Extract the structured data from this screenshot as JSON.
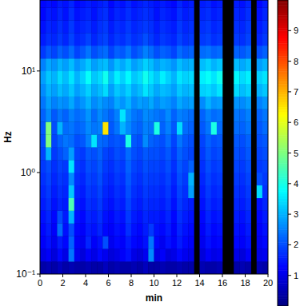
{
  "chart_data": {
    "type": "heatmap",
    "x_label": "min",
    "y_label": "Hz",
    "log": "y",
    "xlim": [
      0,
      20
    ],
    "xticks": [
      0,
      2,
      4,
      6,
      8,
      10,
      12,
      14,
      16,
      18,
      20
    ],
    "ylim": [
      0.1,
      50
    ],
    "yticks": [
      {
        "value": 0.1,
        "label": "10⁻¹"
      },
      {
        "value": 1,
        "label": "10⁰"
      },
      {
        "value": 10,
        "label": "10¹"
      }
    ],
    "x": [
      0,
      0.5,
      1,
      1.5,
      2,
      2.5,
      3,
      3.5,
      4,
      4.5,
      5,
      5.5,
      6,
      6.5,
      7,
      7.5,
      8,
      8.5,
      9,
      9.5,
      10,
      10.5,
      11,
      11.5,
      12,
      12.5,
      13,
      13.5,
      14,
      14.5,
      15,
      15.5,
      16,
      16.5,
      17,
      17.5,
      18,
      18.5,
      19,
      19.5,
      20
    ],
    "y": [
      0.1,
      0.133,
      0.178,
      0.237,
      0.316,
      0.422,
      0.562,
      0.75,
      1,
      1.33,
      1.78,
      2.37,
      3.16,
      4.22,
      5.62,
      7.5,
      10,
      13.3,
      17.8,
      23.7,
      31.6,
      42.2,
      56.2
    ],
    "values": [
      [
        0.4,
        0.5,
        0.4,
        0.6,
        0.4,
        0.5,
        0.4,
        0.4,
        0.5,
        0.4,
        0.4,
        0.6,
        0.4,
        0.5,
        0.4,
        0.4,
        0.5,
        0.4,
        0.6,
        0.4,
        0.4,
        0.5,
        0.4,
        0.4,
        0.5,
        0.4,
        0.4,
        null,
        0.5,
        0.4,
        0.4,
        0.5,
        null,
        null,
        0.4,
        0.5,
        0.4,
        null,
        0.5,
        0.4
      ],
      [
        1.0,
        1.2,
        0.9,
        1.3,
        1.0,
        2.4,
        1.1,
        0.9,
        1.2,
        1.0,
        1.3,
        1.1,
        0.9,
        1.0,
        1.2,
        1.4,
        1.0,
        0.9,
        1.1,
        2.6,
        1.0,
        1.2,
        0.9,
        1.0,
        1.3,
        1.1,
        1.0,
        null,
        0.9,
        1.2,
        1.0,
        1.1,
        null,
        null,
        1.0,
        0.9,
        1.2,
        null,
        1.0,
        1.1
      ],
      [
        1.2,
        1.4,
        1.1,
        1.5,
        1.3,
        2.2,
        1.2,
        1.1,
        1.6,
        1.2,
        1.4,
        2.0,
        1.1,
        1.3,
        1.2,
        1.5,
        1.3,
        1.2,
        1.4,
        2.4,
        1.3,
        1.1,
        1.4,
        1.2,
        1.5,
        1.3,
        1.2,
        null,
        1.1,
        1.4,
        1.2,
        1.3,
        null,
        null,
        1.3,
        1.2,
        1.4,
        null,
        1.1,
        1.3
      ],
      [
        1.3,
        1.5,
        1.2,
        2.3,
        1.4,
        2.0,
        1.3,
        1.2,
        1.5,
        1.4,
        1.6,
        1.3,
        1.2,
        1.4,
        1.3,
        1.7,
        1.4,
        1.3,
        1.5,
        1.8,
        1.4,
        1.3,
        1.5,
        1.2,
        1.6,
        1.4,
        1.3,
        null,
        1.2,
        1.5,
        1.3,
        1.4,
        null,
        null,
        1.4,
        1.3,
        1.5,
        null,
        1.2,
        1.4
      ],
      [
        1.4,
        1.6,
        1.3,
        2.0,
        1.5,
        3.0,
        1.4,
        1.3,
        1.6,
        1.5,
        1.7,
        1.4,
        1.3,
        1.5,
        1.4,
        1.8,
        1.5,
        1.4,
        1.6,
        1.5,
        1.5,
        1.4,
        1.6,
        1.3,
        1.7,
        1.5,
        1.4,
        null,
        1.3,
        1.6,
        1.4,
        1.5,
        null,
        null,
        1.5,
        1.4,
        1.6,
        null,
        1.3,
        1.5
      ],
      [
        1.5,
        1.7,
        1.4,
        1.6,
        1.5,
        4.5,
        1.5,
        1.4,
        1.7,
        1.6,
        1.8,
        1.5,
        1.4,
        1.6,
        1.5,
        1.9,
        1.6,
        1.5,
        1.7,
        1.6,
        1.6,
        1.5,
        1.7,
        1.4,
        1.8,
        1.6,
        1.5,
        null,
        1.4,
        1.7,
        1.5,
        1.6,
        null,
        null,
        1.6,
        1.5,
        1.7,
        null,
        1.4,
        1.6
      ],
      [
        1.6,
        1.8,
        1.5,
        1.7,
        1.6,
        3.2,
        1.6,
        1.5,
        1.8,
        1.7,
        1.9,
        1.6,
        1.5,
        1.7,
        1.6,
        2.0,
        1.7,
        1.6,
        1.8,
        1.7,
        1.7,
        1.6,
        1.8,
        1.5,
        1.9,
        1.7,
        2.8,
        null,
        1.5,
        1.8,
        1.6,
        1.7,
        null,
        null,
        1.7,
        1.6,
        1.8,
        null,
        3.4,
        1.7
      ],
      [
        1.7,
        1.9,
        1.6,
        1.8,
        1.7,
        2.6,
        1.7,
        1.6,
        1.9,
        1.8,
        2.0,
        1.7,
        1.6,
        1.8,
        1.7,
        2.1,
        1.8,
        1.7,
        1.9,
        1.8,
        1.8,
        1.7,
        1.9,
        1.6,
        2.0,
        1.8,
        3.0,
        null,
        1.6,
        1.9,
        1.7,
        1.8,
        null,
        null,
        1.8,
        1.7,
        1.9,
        null,
        2.0,
        1.8
      ],
      [
        1.8,
        2.0,
        1.7,
        1.9,
        1.8,
        3.5,
        1.8,
        1.7,
        2.0,
        1.9,
        2.1,
        1.8,
        1.7,
        1.9,
        1.8,
        2.2,
        1.9,
        1.8,
        2.0,
        1.9,
        1.9,
        1.8,
        2.0,
        1.7,
        2.1,
        1.9,
        2.2,
        null,
        1.7,
        2.0,
        1.8,
        1.9,
        null,
        null,
        1.9,
        1.8,
        2.0,
        null,
        1.8,
        1.9
      ],
      [
        1.9,
        3.0,
        1.8,
        2.0,
        2.2,
        2.8,
        1.9,
        1.8,
        2.1,
        2.0,
        2.2,
        1.9,
        1.8,
        2.0,
        1.9,
        2.3,
        2.0,
        1.9,
        2.1,
        2.0,
        2.0,
        1.9,
        2.1,
        1.8,
        2.2,
        2.0,
        1.9,
        null,
        1.8,
        2.1,
        1.9,
        2.0,
        null,
        null,
        2.0,
        1.9,
        2.1,
        null,
        1.9,
        2.0
      ],
      [
        2.0,
        5.0,
        1.9,
        2.2,
        2.4,
        2.3,
        2.0,
        2.1,
        2.5,
        3.5,
        2.3,
        2.2,
        2.0,
        2.1,
        2.0,
        4.0,
        2.1,
        2.0,
        2.6,
        2.2,
        2.1,
        2.0,
        2.3,
        1.9,
        2.4,
        2.1,
        2.0,
        null,
        1.9,
        2.2,
        2.0,
        2.1,
        null,
        null,
        2.1,
        2.0,
        2.2,
        null,
        2.0,
        2.1
      ],
      [
        2.1,
        5.0,
        2.0,
        3.0,
        2.3,
        2.4,
        2.2,
        2.3,
        2.6,
        2.4,
        2.5,
        6.5,
        2.1,
        2.4,
        3.0,
        2.6,
        2.3,
        2.2,
        2.5,
        2.4,
        4.0,
        2.2,
        2.5,
        2.1,
        3.4,
        2.3,
        2.2,
        null,
        2.1,
        2.4,
        4.0,
        2.3,
        null,
        null,
        2.3,
        2.2,
        2.4,
        null,
        2.1,
        2.3
      ],
      [
        2.2,
        2.6,
        2.1,
        2.4,
        2.2,
        2.5,
        2.3,
        2.4,
        2.7,
        2.3,
        2.6,
        2.4,
        2.2,
        2.5,
        3.5,
        2.7,
        2.4,
        2.3,
        2.6,
        2.5,
        2.4,
        2.3,
        2.6,
        2.2,
        2.5,
        2.4,
        2.3,
        null,
        2.2,
        2.5,
        2.3,
        2.4,
        null,
        null,
        2.4,
        2.3,
        2.5,
        null,
        2.2,
        2.4
      ],
      [
        2.4,
        2.8,
        2.5,
        2.7,
        2.6,
        2.9,
        2.5,
        2.7,
        3.0,
        2.6,
        2.8,
        2.6,
        2.5,
        2.9,
        2.7,
        3.0,
        2.6,
        2.8,
        2.7,
        2.9,
        2.6,
        2.8,
        2.7,
        2.5,
        2.9,
        2.7,
        2.8,
        null,
        2.6,
        3.0,
        2.7,
        2.8,
        null,
        null,
        2.7,
        2.6,
        2.8,
        null,
        2.5,
        2.7
      ],
      [
        2.6,
        3.0,
        2.8,
        3.1,
        2.9,
        3.2,
        2.8,
        3.0,
        3.3,
        2.9,
        3.1,
        3.4,
        2.8,
        3.2,
        3.0,
        3.3,
        2.9,
        3.1,
        3.5,
        3.2,
        2.9,
        3.1,
        3.0,
        2.8,
        3.2,
        3.0,
        3.1,
        null,
        3.3,
        3.4,
        3.2,
        3.5,
        null,
        null,
        3.4,
        3.1,
        3.3,
        null,
        3.0,
        3.2
      ],
      [
        2.8,
        3.2,
        3.0,
        3.4,
        3.1,
        3.5,
        3.0,
        3.3,
        3.8,
        3.2,
        3.4,
        3.9,
        3.1,
        3.6,
        3.3,
        3.7,
        3.2,
        3.4,
        3.9,
        3.5,
        3.2,
        3.6,
        3.3,
        3.0,
        3.5,
        3.3,
        3.4,
        null,
        3.6,
        3.8,
        3.5,
        3.9,
        null,
        null,
        3.7,
        3.4,
        3.6,
        null,
        3.3,
        3.5
      ],
      [
        2.5,
        2.9,
        2.7,
        3.0,
        2.8,
        3.1,
        2.7,
        2.9,
        3.2,
        2.8,
        3.0,
        3.1,
        2.7,
        3.1,
        2.9,
        3.2,
        2.8,
        3.0,
        3.3,
        3.1,
        2.8,
        3.0,
        2.9,
        2.7,
        3.1,
        2.9,
        3.0,
        null,
        3.1,
        3.3,
        3.0,
        3.2,
        null,
        null,
        3.1,
        2.9,
        3.1,
        null,
        2.8,
        3.0
      ],
      [
        1.8,
        2.1,
        1.9,
        2.2,
        2.0,
        2.3,
        1.9,
        2.1,
        2.4,
        2.0,
        2.2,
        2.3,
        1.9,
        2.2,
        2.1,
        2.4,
        2.0,
        2.2,
        2.5,
        2.3,
        2.0,
        2.2,
        2.1,
        1.9,
        2.3,
        2.1,
        2.2,
        null,
        2.3,
        2.4,
        2.2,
        2.3,
        null,
        null,
        2.2,
        2.1,
        2.3,
        null,
        2.0,
        2.2
      ],
      [
        1.5,
        1.7,
        1.6,
        1.8,
        1.6,
        1.9,
        1.6,
        1.7,
        1.9,
        1.6,
        1.8,
        1.9,
        1.6,
        1.8,
        1.7,
        1.9,
        1.7,
        1.8,
        2.0,
        1.8,
        1.6,
        1.8,
        1.7,
        1.6,
        1.9,
        1.7,
        1.8,
        null,
        1.8,
        1.9,
        1.7,
        1.8,
        null,
        null,
        1.8,
        1.7,
        1.9,
        null,
        1.6,
        1.8
      ],
      [
        1.4,
        1.6,
        1.5,
        1.7,
        1.5,
        1.8,
        1.5,
        1.6,
        1.7,
        1.5,
        1.7,
        1.8,
        1.5,
        1.7,
        1.6,
        1.8,
        1.6,
        1.7,
        1.8,
        1.7,
        1.5,
        1.7,
        1.6,
        1.5,
        1.8,
        1.6,
        1.7,
        null,
        1.7,
        1.8,
        1.6,
        1.7,
        null,
        null,
        1.7,
        1.6,
        1.8,
        null,
        1.5,
        1.7
      ],
      [
        1.3,
        1.5,
        1.4,
        1.6,
        1.4,
        1.7,
        1.4,
        1.5,
        1.6,
        1.4,
        1.6,
        1.7,
        1.4,
        1.6,
        1.5,
        1.7,
        1.5,
        1.6,
        1.7,
        1.6,
        1.4,
        1.6,
        1.5,
        1.4,
        1.7,
        1.5,
        1.6,
        null,
        1.6,
        1.7,
        1.5,
        1.6,
        null,
        null,
        1.6,
        1.5,
        1.7,
        null,
        1.4,
        1.6
      ],
      [
        1.3,
        1.4,
        1.3,
        1.5,
        1.4,
        1.6,
        1.3,
        1.4,
        1.5,
        1.4,
        1.5,
        1.6,
        1.3,
        1.5,
        1.4,
        1.6,
        1.4,
        1.5,
        1.6,
        1.5,
        1.4,
        1.5,
        1.4,
        1.3,
        1.6,
        1.4,
        1.5,
        null,
        1.5,
        1.6,
        1.4,
        1.5,
        null,
        null,
        1.5,
        1.4,
        1.6,
        null,
        1.3,
        1.5
      ]
    ],
    "colorbar": {
      "lim": [
        0,
        10
      ],
      "ticks": [
        1,
        2,
        3,
        4,
        5,
        6,
        7,
        8,
        9
      ]
    }
  }
}
